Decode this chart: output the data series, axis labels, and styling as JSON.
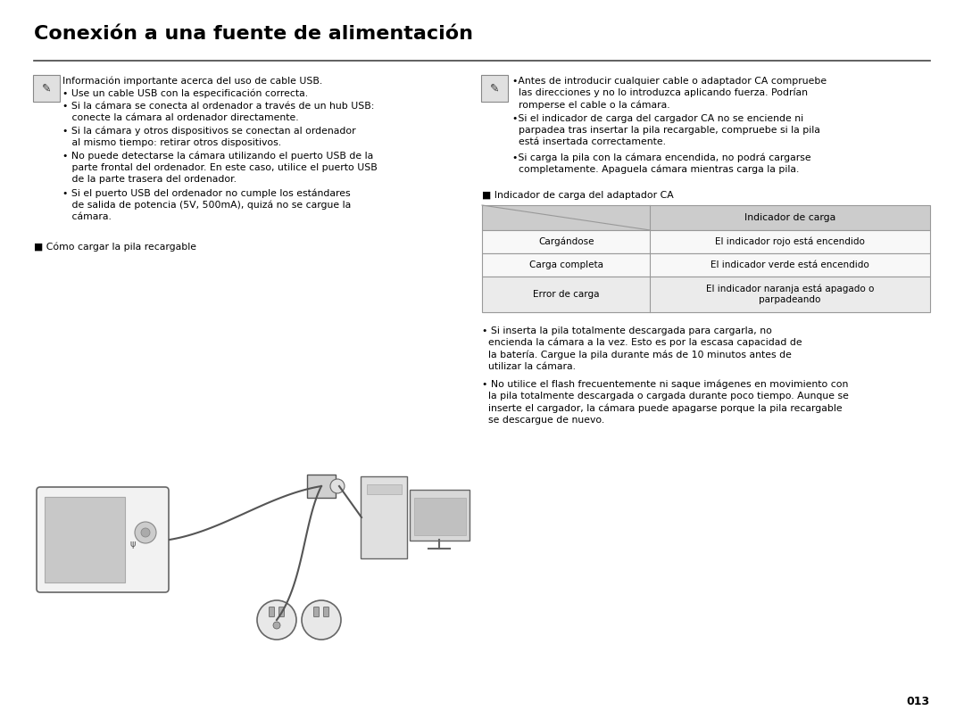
{
  "title": "Conexión a una fuente de alimentación",
  "bg_color": "#ffffff",
  "text_color": "#000000",
  "title_fontsize": 16,
  "body_fontsize": 7.8,
  "divider_color": "#444444",
  "left_note_line0": "Información importante acerca del uso de cable USB.",
  "left_bullets": [
    "• Use un cable USB con la especificación correcta.",
    "• Si la cámara se conecta al ordenador a través de un hub USB:\n   conecte la cámara al ordenador directamente.",
    "• Si la cámara y otros dispositivos se conectan al ordenador\n   al mismo tiempo: retirar otros dispositivos.",
    "• No puede detectarse la cámara utilizando el puerto USB de la\n   parte frontal del ordenador. En este caso, utilice el puerto USB\n   de la parte trasera del ordenador.",
    "• Si el puerto USB del ordenador no cumple los estándares\n   de salida de potencia (5V, 500mA), quizá no se cargue la\n   cámara."
  ],
  "right_bullets": [
    "•Antes de introducir cualquier cable o adaptador CA compruebe\n  las direcciones y no lo introduzca aplicando fuerza. Podrían\n  romperse el cable o la cámara.",
    "•Si el indicador de carga del cargador CA no se enciende ni\n  parpadea tras insertar la pila recargable, compruebe si la pila\n  está insertada correctamente.",
    "•Si carga la pila con la cámara encendida, no podrá cargarse\n  completamente. Apaguela cámara mientras carga la pila."
  ],
  "left_section_label": "■ Cómo cargar la pila recargable",
  "right_section_label": "■ Indicador de carga del adaptador CA",
  "table_header_right": "Indicador de carga",
  "table_rows": [
    [
      "Cargándose",
      "El indicador rojo está encendido"
    ],
    [
      "Carga completa",
      "El indicador verde está encendido"
    ],
    [
      "Error de carga",
      "El indicador naranja está apagado o\nparpadeando"
    ]
  ],
  "table_header_bg": "#cccccc",
  "table_row_bg_odd": "#ebebeb",
  "table_row_bg_even": "#f8f8f8",
  "table_border_color": "#999999",
  "right_lower_bullets": [
    "• Si inserta la pila totalmente descargada para cargarla, no\n  encienda la cámara a la vez. Esto es por la escasa capacidad de\n  la batería. Cargue la pila durante más de 10 minutos antes de\n  utilizar la cámara.",
    "• No utilice el flash frecuentemente ni saque imágenes en movimiento con\n  la pila totalmente descargada o cargada durante poco tiempo. Aunque se\n  inserte el cargador, la cámara puede apagarse porque la pila recargable\n  se descargue de nuevo."
  ],
  "page_number": "013"
}
